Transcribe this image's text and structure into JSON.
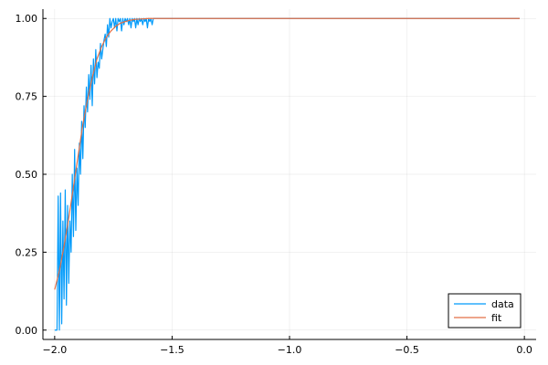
{
  "chart_data": {
    "type": "line",
    "title": "",
    "xlabel": "",
    "ylabel": "",
    "xlim": [
      -2.05,
      0.05
    ],
    "ylim": [
      -0.03,
      1.03
    ],
    "x_ticks": [
      -2.0,
      -1.5,
      -1.0,
      -0.5,
      0.0
    ],
    "x_tick_labels": [
      "−2.0",
      "−1.5",
      "−1.0",
      "−0.5",
      "0.0"
    ],
    "y_ticks": [
      0.0,
      0.25,
      0.5,
      0.75,
      1.0
    ],
    "y_tick_labels": [
      "0.00",
      "0.25",
      "0.50",
      "0.75",
      "1.00"
    ],
    "grid": true,
    "legend_position": "bottom-right",
    "series": [
      {
        "name": "data",
        "color": "#009AFA",
        "x": [
          -2.0,
          -1.99,
          -1.985,
          -1.98,
          -1.975,
          -1.97,
          -1.965,
          -1.96,
          -1.955,
          -1.95,
          -1.945,
          -1.94,
          -1.935,
          -1.93,
          -1.925,
          -1.92,
          -1.915,
          -1.91,
          -1.905,
          -1.9,
          -1.895,
          -1.89,
          -1.885,
          -1.88,
          -1.875,
          -1.87,
          -1.865,
          -1.86,
          -1.855,
          -1.85,
          -1.845,
          -1.84,
          -1.835,
          -1.83,
          -1.825,
          -1.82,
          -1.815,
          -1.81,
          -1.805,
          -1.8,
          -1.795,
          -1.79,
          -1.785,
          -1.78,
          -1.775,
          -1.77,
          -1.765,
          -1.76,
          -1.755,
          -1.75,
          -1.745,
          -1.74,
          -1.735,
          -1.73,
          -1.725,
          -1.72,
          -1.715,
          -1.71,
          -1.705,
          -1.7,
          -1.695,
          -1.69,
          -1.685,
          -1.68,
          -1.675,
          -1.67,
          -1.665,
          -1.66,
          -1.655,
          -1.65,
          -1.645,
          -1.64,
          -1.635,
          -1.63,
          -1.625,
          -1.62,
          -1.615,
          -1.61,
          -1.605,
          -1.6,
          -1.595,
          -1.59,
          -1.585,
          -1.58,
          -1.575,
          -1.57,
          -1.55,
          -1.5,
          -1.4,
          -1.2,
          -1.0,
          -0.8,
          -0.6,
          -0.4,
          -0.2,
          -0.02
        ],
        "y": [
          0.0,
          0.0,
          0.43,
          0.0,
          0.44,
          0.02,
          0.35,
          0.1,
          0.45,
          0.08,
          0.4,
          0.15,
          0.35,
          0.25,
          0.5,
          0.3,
          0.58,
          0.32,
          0.52,
          0.4,
          0.6,
          0.5,
          0.67,
          0.55,
          0.72,
          0.65,
          0.78,
          0.7,
          0.82,
          0.74,
          0.85,
          0.72,
          0.87,
          0.79,
          0.9,
          0.81,
          0.86,
          0.84,
          0.92,
          0.87,
          0.9,
          0.93,
          0.95,
          0.91,
          0.98,
          0.94,
          1.0,
          0.97,
          0.99,
          1.0,
          0.97,
          1.0,
          0.96,
          1.0,
          0.99,
          1.0,
          0.96,
          1.0,
          0.98,
          1.0,
          0.99,
          1.0,
          0.98,
          1.0,
          0.97,
          1.0,
          0.99,
          1.0,
          0.97,
          1.0,
          0.98,
          1.0,
          0.99,
          1.0,
          0.98,
          1.0,
          0.99,
          1.0,
          0.97,
          1.0,
          0.99,
          1.0,
          0.98,
          1.0,
          1.0,
          1.0,
          1.0,
          1.0,
          1.0,
          1.0,
          1.0,
          1.0,
          1.0,
          1.0,
          1.0,
          1.0
        ]
      },
      {
        "name": "fit",
        "color": "#E26F46",
        "x": [
          -2.0,
          -1.98,
          -1.96,
          -1.94,
          -1.92,
          -1.9,
          -1.88,
          -1.86,
          -1.84,
          -1.82,
          -1.8,
          -1.78,
          -1.76,
          -1.74,
          -1.72,
          -1.7,
          -1.68,
          -1.66,
          -1.64,
          -1.62,
          -1.6,
          -1.55,
          -1.5,
          -1.4,
          -1.2,
          -1.0,
          -0.8,
          -0.6,
          -0.4,
          -0.2,
          -0.02
        ],
        "y": [
          0.13,
          0.19,
          0.27,
          0.36,
          0.46,
          0.56,
          0.66,
          0.74,
          0.81,
          0.87,
          0.91,
          0.94,
          0.96,
          0.975,
          0.985,
          0.99,
          0.994,
          0.997,
          0.998,
          0.999,
          1.0,
          1.0,
          1.0,
          1.0,
          1.0,
          1.0,
          1.0,
          1.0,
          1.0,
          1.0,
          1.0
        ]
      }
    ]
  }
}
